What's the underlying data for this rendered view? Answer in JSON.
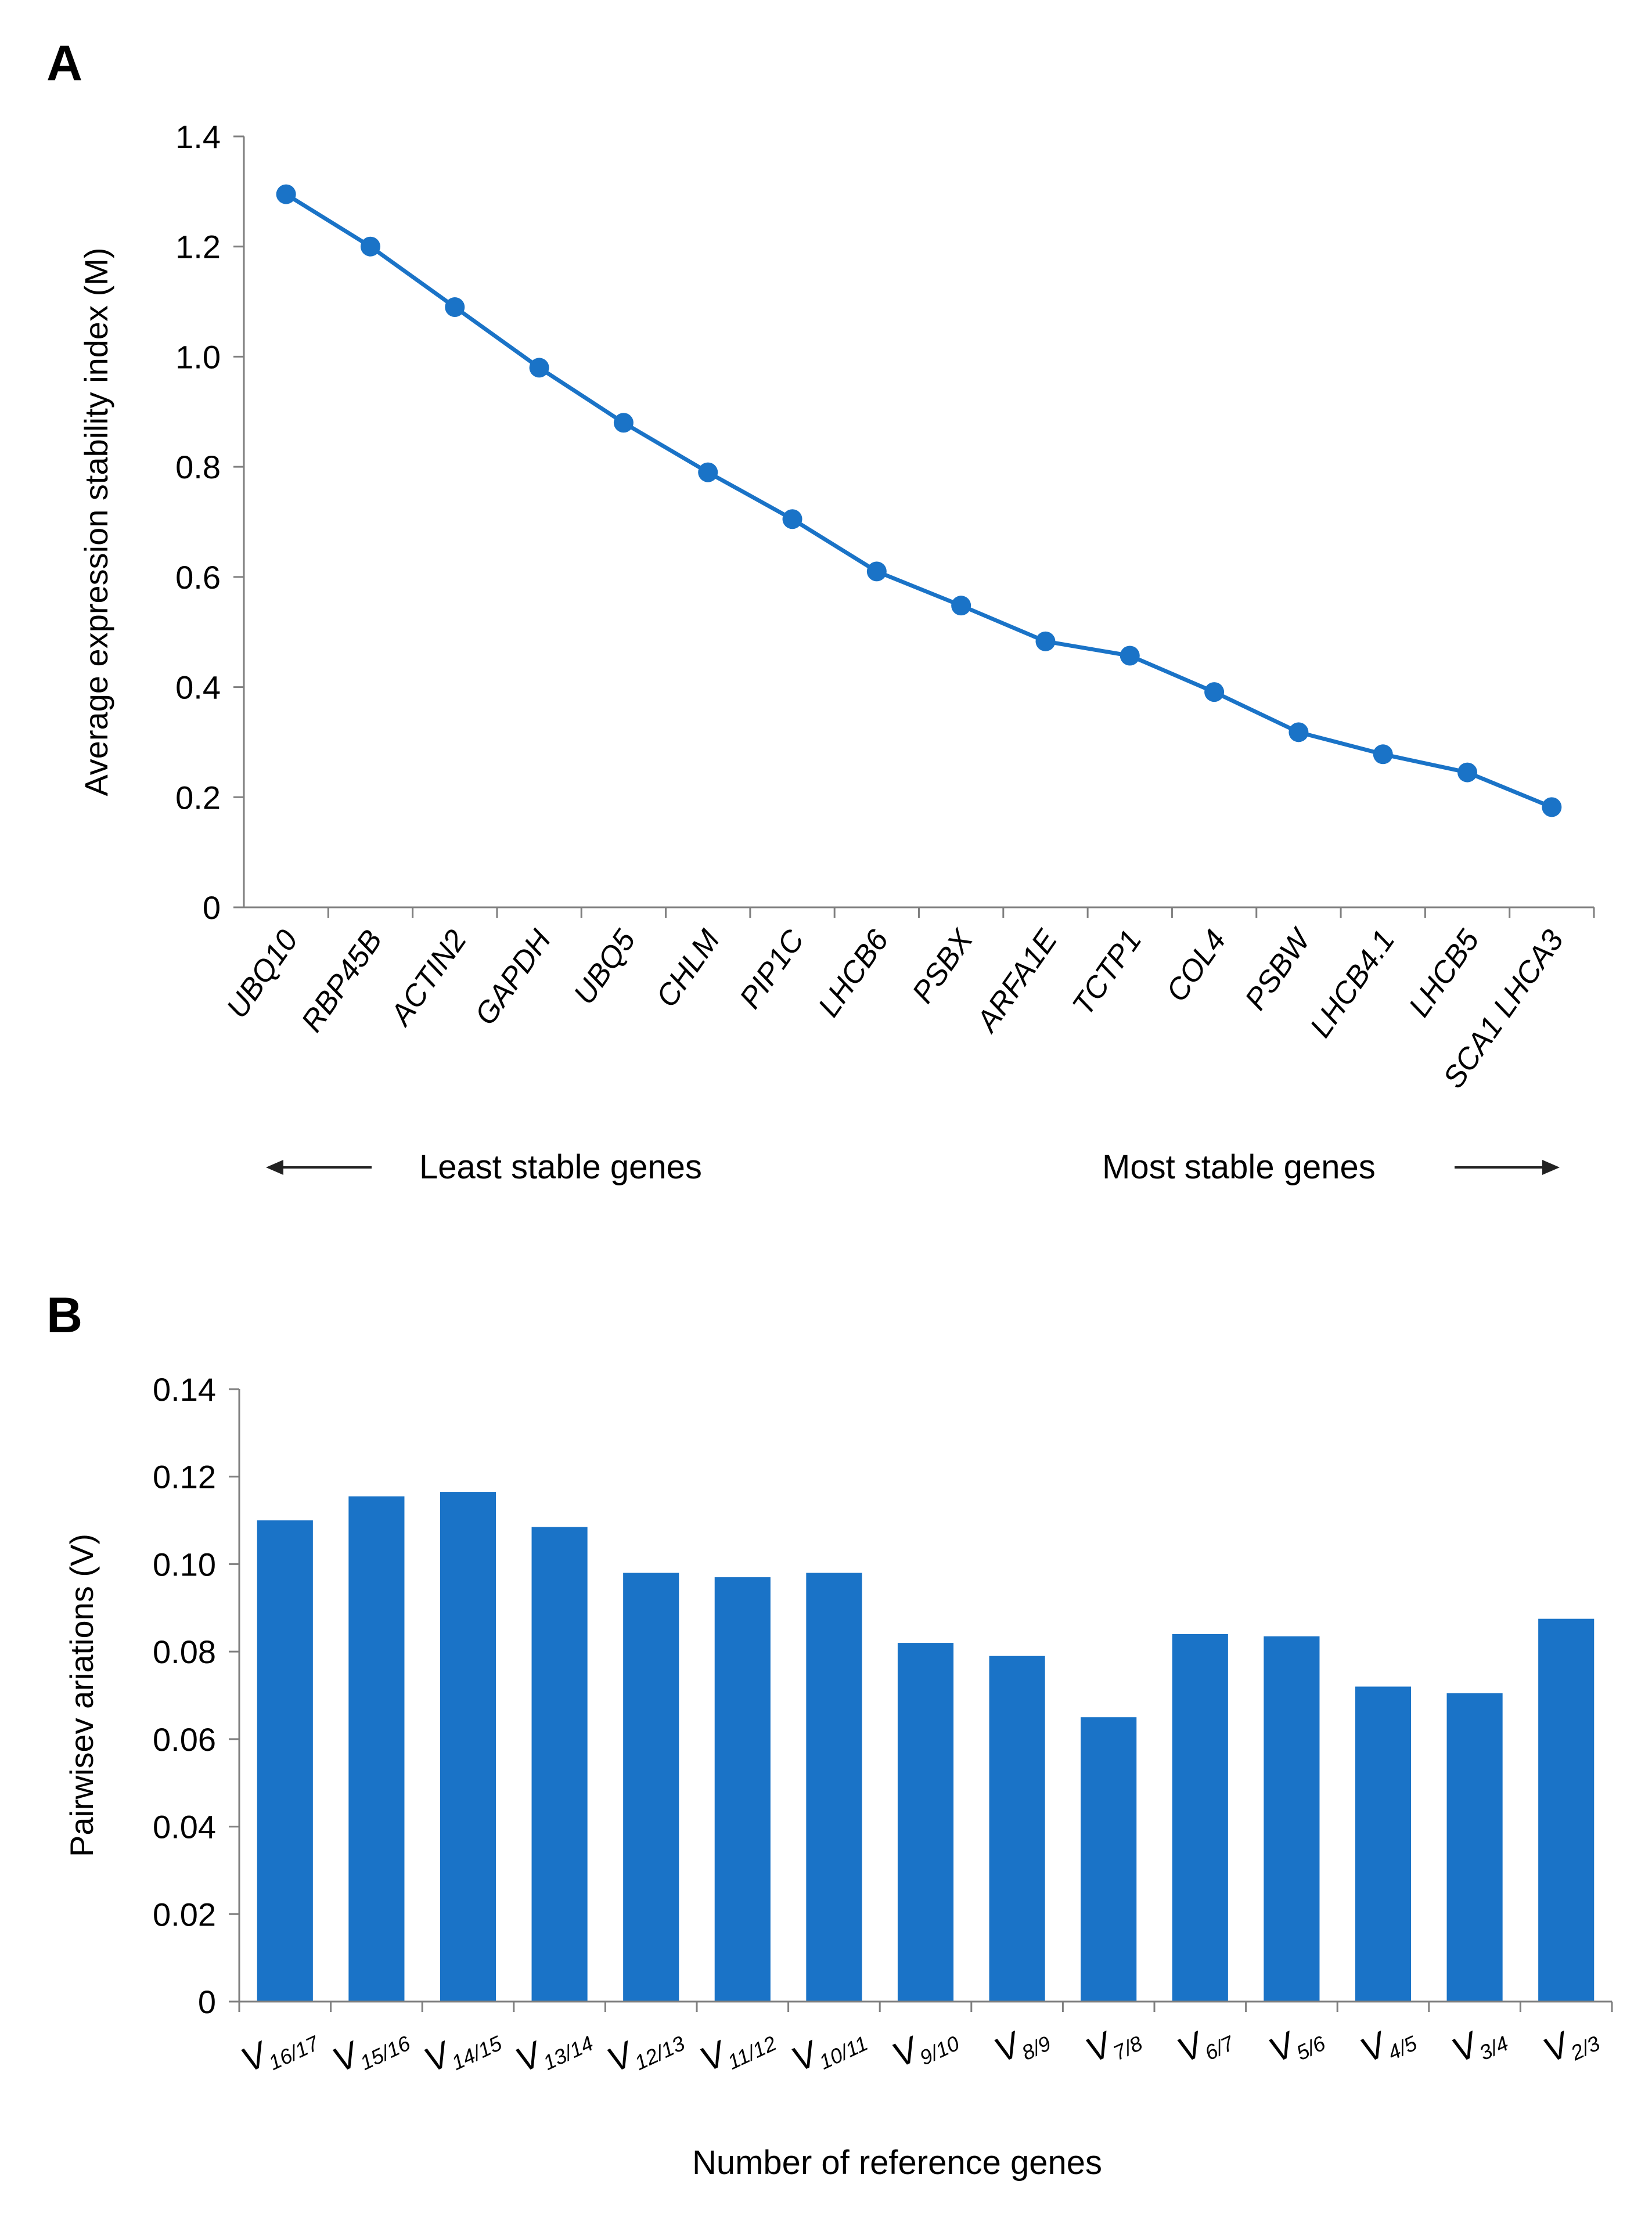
{
  "panels": {
    "a": {
      "label": "A"
    },
    "b": {
      "label": "B"
    }
  },
  "colors": {
    "series": "#1a73c7",
    "axis": "#7f7f7f",
    "text": "#000000"
  },
  "annotations": {
    "least_stable": "Least stable genes",
    "most_stable": "Most stable genes"
  },
  "chart_data": [
    {
      "type": "line",
      "title": "",
      "xlabel": "",
      "ylabel": "Average expression stability index (M)",
      "ylim": [
        0,
        1.4
      ],
      "yticks": [
        "0",
        "0.2",
        "0.4",
        "0.6",
        "0.8",
        "1.0",
        "1.2",
        "1.4"
      ],
      "grid": false,
      "categories": [
        "UBQ10",
        "RBP45B",
        "ACTIN2",
        "GAPDH",
        "UBQ5",
        "CHLM",
        "PIP1C",
        "LHCB6",
        "PSBX",
        "ARFA1E",
        "TCTP1",
        "COL4",
        "PSBW",
        "LHCB4.1",
        "LHCB5",
        "SCA1 LHCA3"
      ],
      "values": [
        1.295,
        1.2,
        1.09,
        0.98,
        0.88,
        0.79,
        0.705,
        0.61,
        0.548,
        0.483,
        0.457,
        0.391,
        0.318,
        0.278,
        0.245,
        0.182
      ]
    },
    {
      "type": "bar",
      "title": "",
      "xlabel": "Number of reference genes",
      "ylabel": "Pairwisev ariations (V)",
      "ylim": [
        0,
        0.14
      ],
      "yticks": [
        "0",
        "0.02",
        "0.04",
        "0.06",
        "0.08",
        "0.10",
        "0.12",
        "0.14"
      ],
      "grid": false,
      "categories": [
        "16/17",
        "15/16",
        "14/15",
        "13/14",
        "12/13",
        "11/12",
        "10/11",
        "9/10",
        "8/9",
        "7/8",
        "6/7",
        "5/6",
        "4/5",
        "3/4",
        "2/3"
      ],
      "category_prefix": "V",
      "values": [
        0.11,
        0.1155,
        0.1165,
        0.1085,
        0.098,
        0.097,
        0.098,
        0.082,
        0.079,
        0.065,
        0.084,
        0.0835,
        0.072,
        0.0705,
        0.0875
      ]
    }
  ]
}
